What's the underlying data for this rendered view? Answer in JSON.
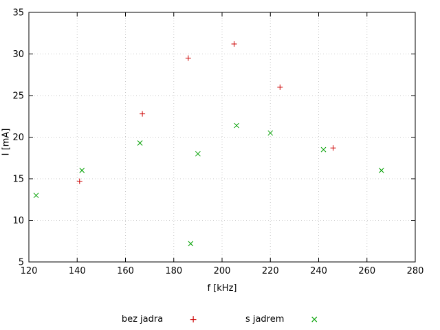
{
  "chart_data": {
    "type": "scatter",
    "title": "",
    "xlabel": "f [kHz]",
    "ylabel": "I [mA]",
    "xlim": [
      120,
      280
    ],
    "ylim": [
      5,
      35
    ],
    "xticks": [
      120,
      140,
      160,
      180,
      200,
      220,
      240,
      260,
      280
    ],
    "yticks": [
      5,
      10,
      15,
      20,
      25,
      30,
      35
    ],
    "grid": true,
    "grid_color": "#c8c8c8",
    "border_color": "#000000",
    "legend_position": "bottom-center",
    "series": [
      {
        "name": "bez jadra",
        "marker": "+",
        "marker_glyph": "+",
        "color": "#cc0000",
        "points": [
          [
            141,
            14.7
          ],
          [
            167,
            22.8
          ],
          [
            186,
            29.5
          ],
          [
            205,
            31.2
          ],
          [
            224,
            26.0
          ],
          [
            246,
            18.7
          ]
        ]
      },
      {
        "name": "s jadrem",
        "marker": "x",
        "marker_glyph": "×",
        "color": "#00a000",
        "points": [
          [
            123,
            13.0
          ],
          [
            142,
            16.0
          ],
          [
            166,
            19.3
          ],
          [
            190,
            18.0
          ],
          [
            187,
            7.2
          ],
          [
            206,
            21.4
          ],
          [
            220,
            20.5
          ],
          [
            242,
            18.5
          ],
          [
            266,
            16.0
          ]
        ]
      }
    ]
  }
}
